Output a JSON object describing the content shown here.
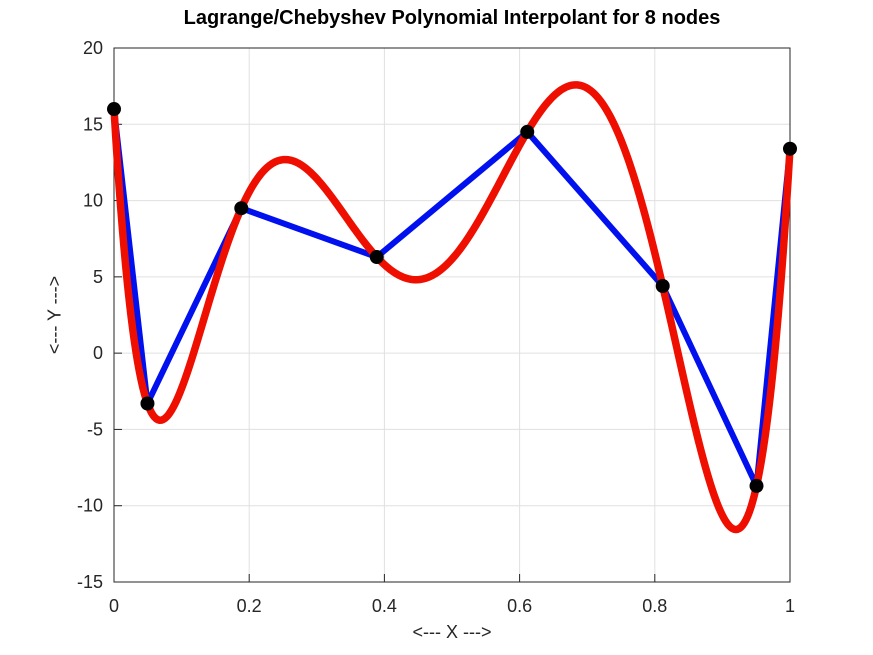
{
  "chart_data": {
    "type": "line",
    "title": "Lagrange/Chebyshev Polynomial Interpolant for 8 nodes",
    "xlabel": "<--- X --->",
    "ylabel": "<--- Y --->",
    "xlim": [
      0,
      1
    ],
    "ylim": [
      -15,
      20
    ],
    "x_ticks": {
      "values": [
        0,
        0.2,
        0.4,
        0.6,
        0.8,
        1
      ],
      "labels": [
        "0",
        "0.2",
        "0.4",
        "0.6",
        "0.8",
        "1"
      ]
    },
    "y_ticks": {
      "values": [
        -15,
        -10,
        -5,
        0,
        5,
        10,
        15,
        20
      ],
      "labels": [
        "-15",
        "-10",
        "-5",
        "0",
        "5",
        "10",
        "15",
        "20"
      ]
    },
    "grid": true,
    "legend": "none",
    "nodes": {
      "x": [
        0,
        0.0495,
        0.1883,
        0.3887,
        0.6113,
        0.8117,
        0.9505,
        1
      ],
      "y": [
        16,
        -3.3,
        9.5,
        6.3,
        14.5,
        4.4,
        -8.7,
        13.4
      ]
    },
    "series": [
      {
        "name": "piecewise-linear-through-nodes",
        "render": "polyline_through_nodes",
        "color": "#0010ee",
        "line_width": 6
      },
      {
        "name": "lagrange-chebyshev-interpolant",
        "render": "lagrange_through_nodes",
        "color": "#ee0f00",
        "line_width": 7.5
      }
    ],
    "markers": {
      "shape": "circle",
      "color": "#000000",
      "radius": 7
    },
    "style": {
      "axis_color": "#262626",
      "grid_color": "#e0e0e0",
      "background": "#ffffff",
      "tick_direction": "in",
      "tick_length": 8,
      "box": true
    }
  }
}
